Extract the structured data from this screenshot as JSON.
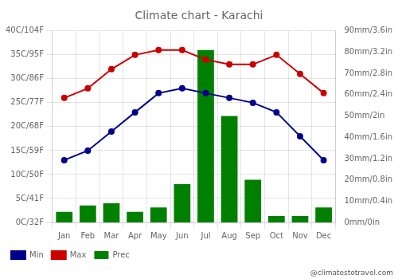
{
  "chart_data": {
    "type": "bar",
    "title": "Climate chart - Karachi",
    "categories": [
      "Jan",
      "Feb",
      "Mar",
      "Apr",
      "May",
      "Jun",
      "Jul",
      "Aug",
      "Sep",
      "Oct",
      "Nov",
      "Dec"
    ],
    "series": [
      {
        "name": "Prec",
        "type": "bar",
        "axis": "y2",
        "color": "#008000",
        "values": [
          5,
          8,
          9,
          5,
          7,
          18,
          81,
          50,
          20,
          3,
          3,
          7
        ]
      },
      {
        "name": "Min",
        "type": "line",
        "color": "#00008B",
        "marker": "circle",
        "values": [
          13,
          15,
          19,
          23,
          27,
          28,
          27,
          26,
          25,
          23,
          18,
          13
        ]
      },
      {
        "name": "Max",
        "type": "line",
        "color": "#CC0000",
        "marker": "circle",
        "values": [
          26,
          28,
          32,
          35,
          36,
          36,
          34,
          33,
          33,
          35,
          31,
          27
        ]
      }
    ],
    "ylim": [
      0,
      40
    ],
    "yticks": [
      {
        "value": 0,
        "label": "0C/32F"
      },
      {
        "value": 5,
        "label": "5C/41F"
      },
      {
        "value": 10,
        "label": "10C/50F"
      },
      {
        "value": 15,
        "label": "15C/59F"
      },
      {
        "value": 20,
        "label": "20C/68F"
      },
      {
        "value": 25,
        "label": "25C/77F"
      },
      {
        "value": 30,
        "label": "30C/86F"
      },
      {
        "value": 35,
        "label": "35C/95F"
      },
      {
        "value": 40,
        "label": "40C/104F"
      }
    ],
    "y2lim": [
      0,
      90
    ],
    "y2ticks": [
      {
        "value": 0,
        "label": "0mm/0in"
      },
      {
        "value": 10,
        "label": "10mm/0.4in"
      },
      {
        "value": 20,
        "label": "20mm/0.8in"
      },
      {
        "value": 30,
        "label": "30mm/1.2in"
      },
      {
        "value": 40,
        "label": "40mm/1.6in"
      },
      {
        "value": 50,
        "label": "50mm/2in"
      },
      {
        "value": 60,
        "label": "60mm/2.4in"
      },
      {
        "value": 70,
        "label": "70mm/2.8in"
      },
      {
        "value": 80,
        "label": "80mm/3.2in"
      },
      {
        "value": 90,
        "label": "90mm/3.6in"
      }
    ],
    "grid": true,
    "legend": "bottom",
    "annotations": [
      "@climatestotravel.com"
    ]
  }
}
